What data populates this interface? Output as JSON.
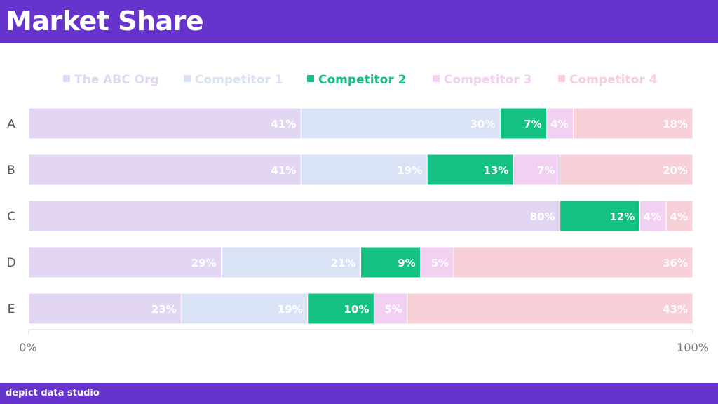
{
  "header": {
    "title": "Market Share"
  },
  "footer": {
    "brand": "depict data studio"
  },
  "chart_data": {
    "type": "bar",
    "orientation": "horizontal",
    "stacked": true,
    "categories": [
      "A",
      "B",
      "C",
      "D",
      "E"
    ],
    "series": [
      {
        "name": "The ABC Org",
        "values": [
          41,
          41,
          80,
          29,
          23
        ],
        "color": "#e2d6f3",
        "label_color": "#ffffff"
      },
      {
        "name": "Competitor 1",
        "values": [
          30,
          19,
          0,
          21,
          19
        ],
        "color": "#d9e3f5",
        "label_color": "#ffffff"
      },
      {
        "name": "Competitor 2",
        "values": [
          7,
          13,
          12,
          9,
          10
        ],
        "color": "#14c183",
        "label_color": "#ffffff"
      },
      {
        "name": "Competitor 3",
        "values": [
          4,
          7,
          4,
          5,
          5
        ],
        "color": "#f1d0f1",
        "label_color": "#ffffff"
      },
      {
        "name": "Competitor 4",
        "values": [
          18,
          20,
          4,
          36,
          43
        ],
        "color": "#f7cfd6",
        "label_color": "#ffffff"
      }
    ],
    "legend_text_colors": [
      "#e2d6f3",
      "#d9e3f5",
      "#14c183",
      "#f1d0f1",
      "#f7cfd6"
    ],
    "value_format": "{v}%",
    "xlim": [
      0,
      100
    ],
    "x_tick_labels": [
      "0%",
      "100%"
    ],
    "legend": "top",
    "grid": false
  }
}
